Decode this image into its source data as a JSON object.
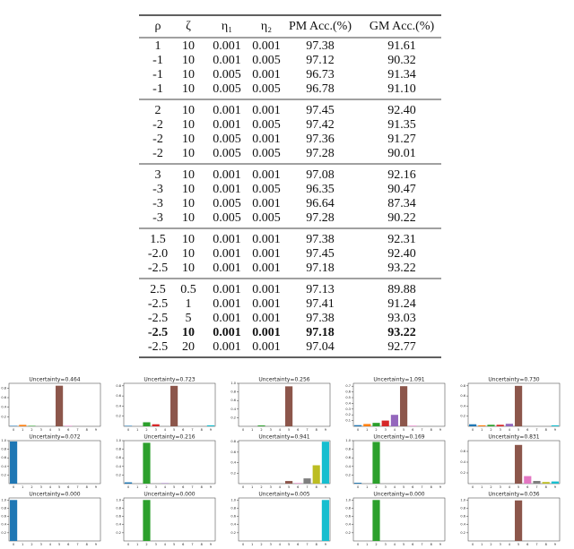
{
  "table": {
    "header": [
      "ρ",
      "ζ",
      "η₁",
      "η₂",
      "PM Acc.(%)",
      "GM Acc.(%)"
    ],
    "groups": [
      {
        "rows": [
          [
            "1",
            "10",
            "0.001",
            "0.001",
            "97.38",
            "91.61"
          ],
          [
            "-1",
            "10",
            "0.001",
            "0.005",
            "97.12",
            "90.32"
          ],
          [
            "-1",
            "10",
            "0.005",
            "0.001",
            "96.73",
            "91.34"
          ],
          [
            "-1",
            "10",
            "0.005",
            "0.005",
            "96.78",
            "91.10"
          ]
        ]
      },
      {
        "rows": [
          [
            "2",
            "10",
            "0.001",
            "0.001",
            "97.45",
            "92.40"
          ],
          [
            "-2",
            "10",
            "0.001",
            "0.005",
            "97.42",
            "91.35"
          ],
          [
            "-2",
            "10",
            "0.005",
            "0.001",
            "97.36",
            "91.27"
          ],
          [
            "-2",
            "10",
            "0.005",
            "0.005",
            "97.28",
            "90.01"
          ]
        ]
      },
      {
        "rows": [
          [
            "3",
            "10",
            "0.001",
            "0.001",
            "97.08",
            "92.16"
          ],
          [
            "-3",
            "10",
            "0.001",
            "0.005",
            "96.35",
            "90.47"
          ],
          [
            "-3",
            "10",
            "0.005",
            "0.001",
            "96.64",
            "87.34"
          ],
          [
            "-3",
            "10",
            "0.005",
            "0.005",
            "97.28",
            "90.22"
          ]
        ]
      },
      {
        "rows": [
          [
            "1.5",
            "10",
            "0.001",
            "0.001",
            "97.38",
            "92.31"
          ],
          [
            "-2.0",
            "10",
            "0.001",
            "0.001",
            "97.45",
            "92.40"
          ],
          [
            "-2.5",
            "10",
            "0.001",
            "0.001",
            "97.18",
            "93.22"
          ]
        ]
      },
      {
        "rows": [
          [
            "2.5",
            "0.5",
            "0.001",
            "0.001",
            "97.13",
            "89.88"
          ],
          [
            "-2.5",
            "1",
            "0.001",
            "0.001",
            "97.41",
            "91.24"
          ],
          [
            "-2.5",
            "5",
            "0.001",
            "0.001",
            "97.38",
            "93.03"
          ],
          [
            "-2.5",
            "10",
            "0.001",
            "0.001",
            "97.18",
            "93.22"
          ],
          [
            "-2.5",
            "20",
            "0.001",
            "0.001",
            "97.04",
            "92.77"
          ]
        ],
        "bold_row": 3
      }
    ]
  },
  "figures": {
    "colors": [
      "#1f77b4",
      "#ff7f0e",
      "#2ca02c",
      "#d62728",
      "#9467bd",
      "#8c564b",
      "#e377c2",
      "#7f7f7f",
      "#bcbd22",
      "#17becf"
    ],
    "categories": [
      0,
      1,
      2,
      3,
      4,
      5,
      6,
      7,
      8,
      9
    ],
    "panels": [
      {
        "title": "Uncertainty=0.464",
        "values": [
          0.01,
          0.03,
          0.01,
          0,
          0,
          0.85,
          0.01,
          0,
          0,
          0
        ],
        "ylim": [
          0,
          0.9
        ],
        "yticks": [
          0.2,
          0.4,
          0.6,
          0.8
        ]
      },
      {
        "title": "Uncertainty=0.723",
        "values": [
          0.01,
          0,
          0.08,
          0.04,
          0,
          0.8,
          0,
          0,
          0,
          0.02
        ],
        "ylim": [
          0,
          0.85
        ],
        "yticks": [
          0.2,
          0.4,
          0.6,
          0.8
        ]
      },
      {
        "title": "Uncertainty=0.256",
        "values": [
          0,
          0,
          0.02,
          0,
          0,
          0.93,
          0,
          0,
          0,
          0
        ],
        "ylim": [
          0,
          1
        ],
        "yticks": [
          0.2,
          0.4,
          0.6,
          0.8,
          {
            "value": 1,
            "label": "1.0"
          }
        ]
      },
      {
        "title": "Uncertainty=1.091",
        "values": [
          0.02,
          0.04,
          0.06,
          0.1,
          0.2,
          0.7,
          0.01,
          0,
          0,
          0
        ],
        "ylim": [
          0,
          0.75
        ],
        "yticks": [
          0.1,
          0.2,
          0.3,
          0.4,
          0.5,
          0.6,
          0.7
        ]
      },
      {
        "title": "Uncertainty=0.730",
        "values": [
          0.04,
          0.02,
          0.03,
          0.03,
          0.05,
          0.8,
          0,
          0,
          0,
          0.02
        ],
        "ylim": [
          0,
          0.85
        ],
        "yticks": [
          0.2,
          0.4,
          0.6,
          0.8
        ]
      },
      {
        "title": "Uncertainty=0.072",
        "values": [
          0.98,
          0,
          0,
          0,
          0,
          0,
          0,
          0,
          0,
          0
        ],
        "ylim": [
          0,
          1
        ],
        "yticks": [
          0.2,
          0.4,
          0.6,
          0.8,
          {
            "value": 1,
            "label": "1.0"
          }
        ]
      },
      {
        "title": "Uncertainty=0.216",
        "values": [
          0.03,
          0,
          0.95,
          0,
          0.01,
          0,
          0,
          0,
          0,
          0
        ],
        "ylim": [
          0,
          1
        ],
        "yticks": [
          0.2,
          0.4,
          0.6,
          0.8,
          {
            "value": 1,
            "label": "1.0"
          }
        ]
      },
      {
        "title": "Uncertainty=0.941",
        "values": [
          0,
          0,
          0,
          0,
          0,
          0.05,
          0.01,
          0.1,
          0.35,
          0.8
        ],
        "ylim": [
          0,
          0.82
        ],
        "yticks": [
          0.2,
          0.4,
          0.6,
          0.8
        ]
      },
      {
        "title": "Uncertainty=0.169",
        "values": [
          0.02,
          0,
          0.97,
          0,
          0,
          0,
          0,
          0,
          0,
          0
        ],
        "ylim": [
          0,
          1
        ],
        "yticks": [
          0.2,
          0.4,
          0.6,
          0.8,
          {
            "value": 1,
            "label": "1.0"
          }
        ]
      },
      {
        "title": "Uncertainty=0.831",
        "values": [
          0,
          0,
          0,
          0,
          0,
          0.72,
          0.14,
          0.05,
          0.03,
          0.04
        ],
        "ylim": [
          0,
          0.8
        ],
        "yticks": [
          0.2,
          0.4,
          0.6
        ]
      },
      {
        "title": "Uncertainty=0.000",
        "values": [
          1,
          0,
          0,
          0,
          0,
          0,
          0,
          0,
          0,
          0
        ],
        "ylim": [
          0,
          1.05
        ],
        "yticks": [
          0.2,
          0.4,
          0.6,
          0.8,
          {
            "value": 1,
            "label": "1.0"
          }
        ]
      },
      {
        "title": "Uncertainty=0.000",
        "values": [
          0,
          0,
          1,
          0,
          0,
          0,
          0,
          0,
          0,
          0
        ],
        "ylim": [
          0,
          1.05
        ],
        "yticks": [
          0.2,
          0.4,
          0.6,
          0.8,
          {
            "value": 1,
            "label": "1.0"
          }
        ]
      },
      {
        "title": "Uncertainty=0.005",
        "values": [
          0,
          0,
          0,
          0,
          0,
          0,
          0,
          0,
          0,
          1
        ],
        "ylim": [
          0,
          1.05
        ],
        "yticks": [
          0.2,
          0.4,
          0.6,
          0.8,
          {
            "value": 1,
            "label": "1.0"
          }
        ]
      },
      {
        "title": "Uncertainty=0.000",
        "values": [
          0,
          0,
          1,
          0,
          0,
          0,
          0,
          0,
          0,
          0
        ],
        "ylim": [
          0,
          1.05
        ],
        "yticks": [
          0.2,
          0.4,
          0.6,
          0.8,
          {
            "value": 1,
            "label": "1.0"
          }
        ]
      },
      {
        "title": "Uncertainty=0.036",
        "values": [
          0,
          0,
          0,
          0,
          0,
          0.99,
          0,
          0,
          0,
          0
        ],
        "ylim": [
          0,
          1.05
        ],
        "yticks": [
          0.2,
          0.4,
          0.6,
          0.8,
          {
            "value": 1,
            "label": "1.0"
          }
        ]
      }
    ]
  }
}
